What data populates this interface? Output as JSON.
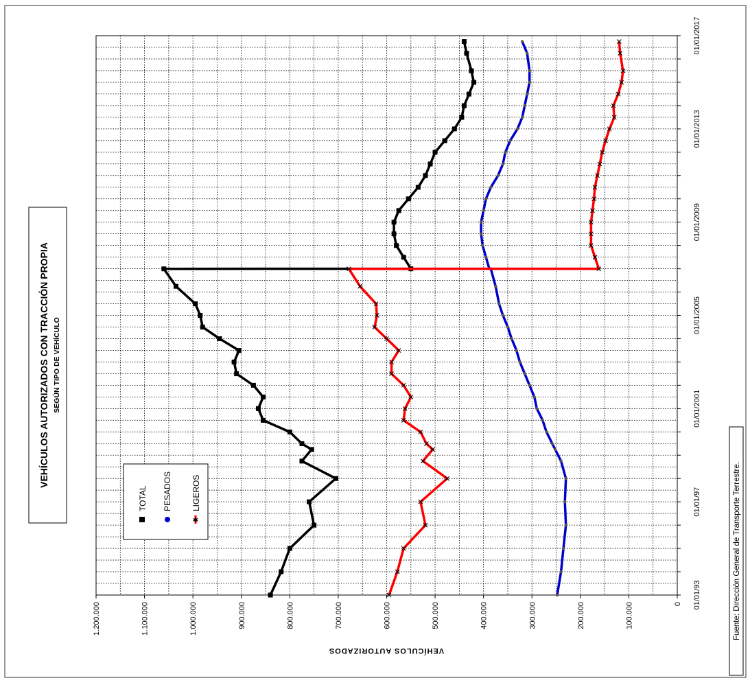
{
  "chart_data": {
    "type": "line",
    "title": "VEHÍCULOS AUTORIZADOS CON TRACCIÓN PROPIA",
    "subtitle": "SEGÚN TIPO DE VEHÍCULO",
    "ylabel": "VEHÍCULOS AUTORIZADOS",
    "ylim": [
      0,
      1200000
    ],
    "y_ticks": [
      0,
      100000,
      200000,
      300000,
      400000,
      500000,
      600000,
      700000,
      800000,
      900000,
      1000000,
      1100000,
      1200000
    ],
    "y_tick_labels": [
      "0",
      "100.000",
      "200.000",
      "300.000",
      "400.000",
      "500.000",
      "600.000",
      "700.000",
      "800.000",
      "900.000",
      "1.000.000",
      "1.100.000",
      "1.200.000"
    ],
    "x_tick_labels": [
      "01/01/93",
      "01/01/97",
      "01/01/2001",
      "01/01/2005",
      "01/01/2009",
      "01/01/2013",
      "01/01/2017"
    ],
    "xlim": [
      "1993-01-01",
      "2017-01-01"
    ],
    "grid": true,
    "legend_position": "left, inside plot",
    "source": "Fuente: Dirección General de Transporte Terrestre.",
    "series": [
      {
        "name": "TOTAL",
        "color": "#000000",
        "marker": "square",
        "points": [
          [
            "1993-01-01",
            840000
          ],
          [
            "1994-01-01",
            818000
          ],
          [
            "1995-01-01",
            800000
          ],
          [
            "1996-01-01",
            750000
          ],
          [
            "1997-01-01",
            760000
          ],
          [
            "1998-01-01",
            705000
          ],
          [
            "1998-10-01",
            775000
          ],
          [
            "1999-04-01",
            755000
          ],
          [
            "1999-07-01",
            775000
          ],
          [
            "2000-01-01",
            800000
          ],
          [
            "2000-07-01",
            855000
          ],
          [
            "2001-01-01",
            865000
          ],
          [
            "2001-07-01",
            855000
          ],
          [
            "2002-01-01",
            875000
          ],
          [
            "2002-07-01",
            910000
          ],
          [
            "2003-01-01",
            915000
          ],
          [
            "2003-07-01",
            905000
          ],
          [
            "2004-01-01",
            945000
          ],
          [
            "2004-07-01",
            980000
          ],
          [
            "2005-01-01",
            985000
          ],
          [
            "2005-07-01",
            995000
          ],
          [
            "2006-04-01",
            1035000
          ],
          [
            "2006-12-31",
            1060000
          ],
          [
            "2007-01-01",
            550000
          ],
          [
            "2007-07-01",
            565000
          ],
          [
            "2008-01-01",
            580000
          ],
          [
            "2008-07-01",
            585000
          ],
          [
            "2009-01-01",
            585000
          ],
          [
            "2009-07-01",
            575000
          ],
          [
            "2010-01-01",
            555000
          ],
          [
            "2010-07-01",
            535000
          ],
          [
            "2011-01-01",
            520000
          ],
          [
            "2011-07-01",
            510000
          ],
          [
            "2012-01-01",
            500000
          ],
          [
            "2012-07-01",
            480000
          ],
          [
            "2013-01-01",
            460000
          ],
          [
            "2013-07-01",
            445000
          ],
          [
            "2014-01-01",
            440000
          ],
          [
            "2014-07-01",
            430000
          ],
          [
            "2015-01-01",
            420000
          ],
          [
            "2015-07-01",
            425000
          ],
          [
            "2016-04-01",
            435000
          ],
          [
            "2016-10-01",
            440000
          ]
        ]
      },
      {
        "name": "PESADOS",
        "color": "#0000cc",
        "marker": "circle",
        "points": [
          [
            "1993-01-01",
            248000
          ],
          [
            "1994-01-01",
            240000
          ],
          [
            "1995-01-01",
            235000
          ],
          [
            "1996-01-01",
            230000
          ],
          [
            "1997-01-01",
            232000
          ],
          [
            "1998-01-01",
            230000
          ],
          [
            "1998-10-01",
            240000
          ],
          [
            "1999-04-01",
            252000
          ],
          [
            "1999-07-01",
            258000
          ],
          [
            "2000-01-01",
            270000
          ],
          [
            "2000-07-01",
            278000
          ],
          [
            "2001-01-01",
            290000
          ],
          [
            "2001-07-01",
            295000
          ],
          [
            "2002-01-01",
            305000
          ],
          [
            "2002-07-01",
            315000
          ],
          [
            "2003-01-01",
            325000
          ],
          [
            "2003-07-01",
            332000
          ],
          [
            "2004-01-01",
            342000
          ],
          [
            "2004-07-01",
            350000
          ],
          [
            "2005-01-01",
            360000
          ],
          [
            "2005-07-01",
            368000
          ],
          [
            "2006-04-01",
            375000
          ],
          [
            "2006-12-31",
            385000
          ],
          [
            "2007-01-01",
            388000
          ],
          [
            "2007-07-01",
            395000
          ],
          [
            "2008-01-01",
            402000
          ],
          [
            "2008-07-01",
            405000
          ],
          [
            "2009-01-01",
            405000
          ],
          [
            "2009-07-01",
            400000
          ],
          [
            "2010-01-01",
            395000
          ],
          [
            "2010-07-01",
            385000
          ],
          [
            "2011-01-01",
            370000
          ],
          [
            "2011-07-01",
            360000
          ],
          [
            "2012-01-01",
            355000
          ],
          [
            "2012-07-01",
            345000
          ],
          [
            "2013-01-01",
            330000
          ],
          [
            "2013-07-01",
            320000
          ],
          [
            "2014-01-01",
            315000
          ],
          [
            "2014-07-01",
            310000
          ],
          [
            "2015-01-01",
            305000
          ],
          [
            "2015-07-01",
            305000
          ],
          [
            "2016-04-01",
            310000
          ],
          [
            "2016-10-01",
            320000
          ]
        ]
      },
      {
        "name": "LIGEROS",
        "color": "#ff0000",
        "marker": "cross",
        "points": [
          [
            "1993-01-01",
            595000
          ],
          [
            "1994-01-01",
            578000
          ],
          [
            "1995-01-01",
            565000
          ],
          [
            "1996-01-01",
            520000
          ],
          [
            "1997-01-01",
            530000
          ],
          [
            "1998-01-01",
            475000
          ],
          [
            "1998-10-01",
            525000
          ],
          [
            "1999-04-01",
            505000
          ],
          [
            "1999-07-01",
            518000
          ],
          [
            "2000-01-01",
            530000
          ],
          [
            "2000-07-01",
            565000
          ],
          [
            "2001-01-01",
            562000
          ],
          [
            "2001-07-01",
            550000
          ],
          [
            "2002-01-01",
            565000
          ],
          [
            "2002-07-01",
            590000
          ],
          [
            "2003-01-01",
            590000
          ],
          [
            "2003-07-01",
            575000
          ],
          [
            "2004-01-01",
            600000
          ],
          [
            "2004-07-01",
            625000
          ],
          [
            "2005-01-01",
            620000
          ],
          [
            "2005-07-01",
            622000
          ],
          [
            "2006-04-01",
            655000
          ],
          [
            "2006-12-31",
            678000
          ],
          [
            "2007-01-01",
            162000
          ],
          [
            "2007-07-01",
            170000
          ],
          [
            "2008-01-01",
            178000
          ],
          [
            "2008-07-01",
            178000
          ],
          [
            "2009-01-01",
            178000
          ],
          [
            "2009-07-01",
            175000
          ],
          [
            "2010-01-01",
            172000
          ],
          [
            "2010-07-01",
            170000
          ],
          [
            "2011-01-01",
            165000
          ],
          [
            "2011-07-01",
            160000
          ],
          [
            "2012-01-01",
            155000
          ],
          [
            "2012-07-01",
            148000
          ],
          [
            "2013-01-01",
            140000
          ],
          [
            "2013-07-01",
            130000
          ],
          [
            "2014-01-01",
            132000
          ],
          [
            "2014-07-01",
            122000
          ],
          [
            "2015-01-01",
            115000
          ],
          [
            "2015-07-01",
            112000
          ],
          [
            "2016-04-01",
            118000
          ],
          [
            "2016-10-01",
            120000
          ]
        ]
      }
    ]
  }
}
